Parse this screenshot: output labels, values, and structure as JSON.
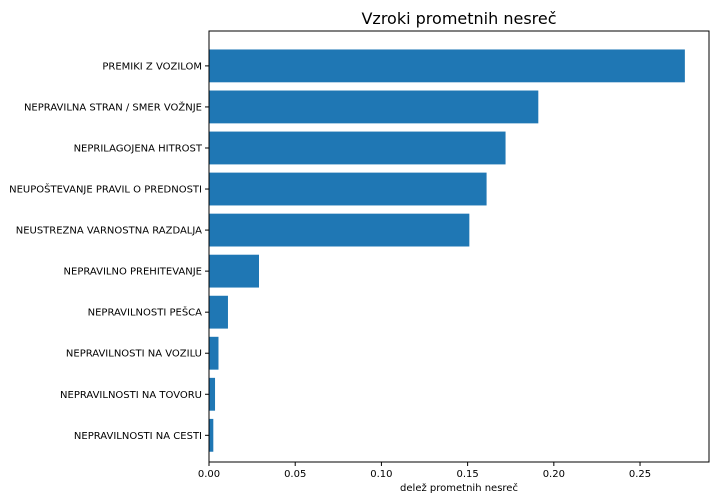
{
  "chart_data": {
    "type": "bar",
    "orientation": "horizontal",
    "title": "Vzroki prometnih nesreč",
    "xlabel": "delež prometnih nesreč",
    "ylabel": "",
    "xlim": [
      0,
      0.29
    ],
    "xticks": [
      0.0,
      0.05,
      0.1,
      0.15,
      0.2,
      0.25
    ],
    "xtick_labels": [
      "0.00",
      "0.05",
      "0.10",
      "0.15",
      "0.20",
      "0.25"
    ],
    "grid": false,
    "legend": "none",
    "bar_color": "#1f77b4",
    "categories": [
      "PREMIKI Z VOZILOM",
      "NEPRAVILNA STRAN / SMER VOŽNJE",
      "NEPRILAGOJENA HITROST",
      "NEUPOŠTEVANJE PRAVIL O PREDNOSTI",
      "NEUSTREZNA VARNOSTNA RAZDALJA",
      "NEPRAVILNO PREHITEVANJE",
      "NEPRAVILNOSTI PEŠCA",
      "NEPRAVILNOSTI NA VOZILU",
      "NEPRAVILNOSTI NA TOVORU",
      "NEPRAVILNOSTI NA CESTI"
    ],
    "values": [
      0.276,
      0.191,
      0.172,
      0.161,
      0.151,
      0.029,
      0.011,
      0.0055,
      0.0035,
      0.0025
    ]
  }
}
